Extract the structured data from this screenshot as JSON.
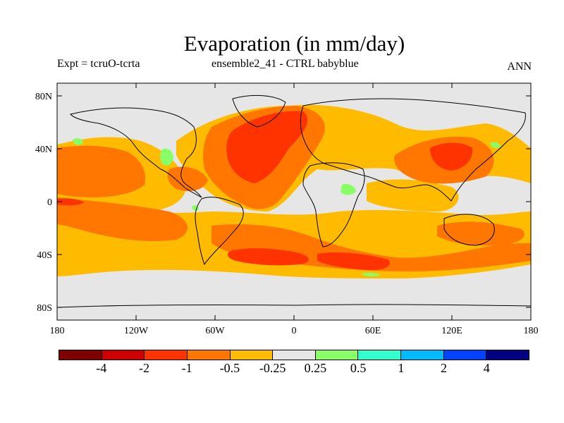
{
  "title": "Evaporation (in mm/day)",
  "subtitle_left": "Expt = tcruO-tcrta",
  "subtitle_center": "ensemble2_41 - CTRL babyblue",
  "subtitle_right": "ANN",
  "lat_labels": [
    "80N",
    "40N",
    "0",
    "40S",
    "80S"
  ],
  "lon_labels": [
    "180",
    "120W",
    "60W",
    "0",
    "60E",
    "120E",
    "180"
  ],
  "colorbar": {
    "colors": [
      "#7f0000",
      "#cc0000",
      "#ff3300",
      "#ff7700",
      "#ffbb00",
      "#e6e6e6",
      "#88ff66",
      "#33ffcc",
      "#00bbff",
      "#0044ff",
      "#000080"
    ],
    "labels": [
      "-4",
      "-2",
      "-1",
      "-0.5",
      "-0.25",
      "0.25",
      "0.5",
      "1",
      "2",
      "4"
    ]
  },
  "colors": {
    "land_background": "#e6e6e6",
    "strong_decrease": "#ff3300",
    "moderate_decrease": "#ff7700",
    "weak_decrease": "#ffbb00",
    "increase": "#88ff66"
  }
}
